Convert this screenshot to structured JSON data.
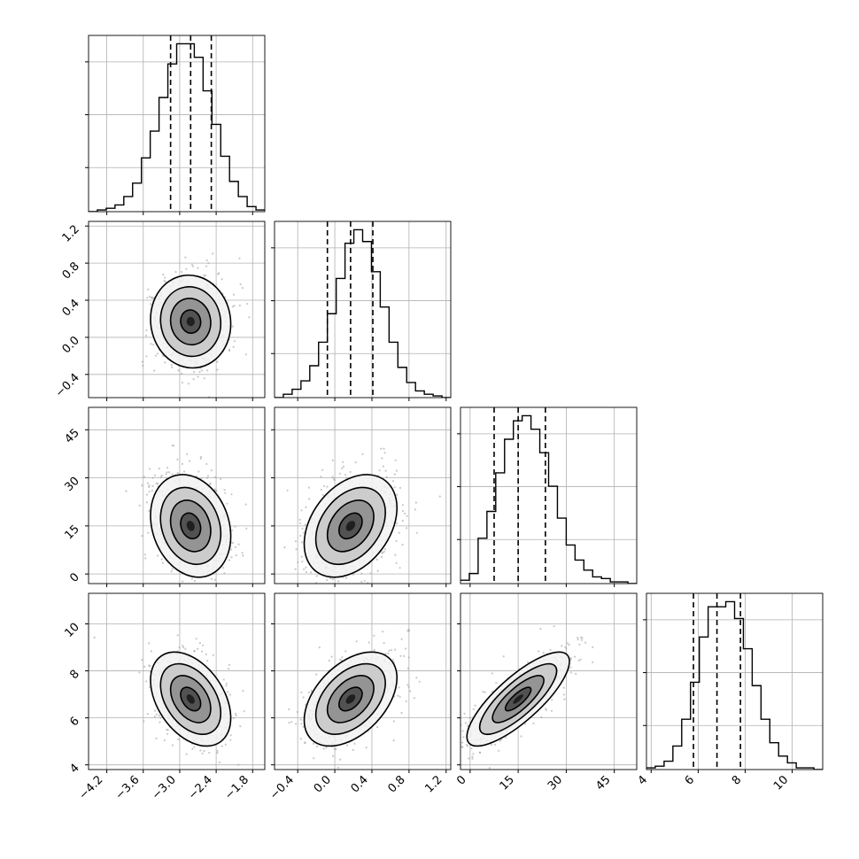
{
  "chart_data": {
    "type": "corner",
    "description_source": "corner plot of 4 parameters: 1D histograms on diagonal, 2D density with contours off-diagonal",
    "grid": true,
    "colors": {
      "line": "#000000",
      "grid": "#b0b0b0",
      "scatter": "#9a9a9a",
      "background": "#ffffff"
    },
    "parameters": [
      {
        "range": [
          -4.5,
          -1.6
        ],
        "ticks": [
          -4.2,
          -3.6,
          -3.0,
          -2.4,
          -1.8
        ],
        "tick_labels": [
          "−4.2",
          "−3.6",
          "−3.0",
          "−2.4",
          "−1.8"
        ],
        "quantiles": [
          -3.15,
          -2.82,
          -2.48
        ],
        "mean": -2.82,
        "sd": 0.33
      },
      {
        "range": [
          -0.65,
          1.25
        ],
        "ticks": [
          -0.4,
          0.0,
          0.4,
          0.8,
          1.2
        ],
        "tick_labels": [
          "−0.4",
          "0.0",
          "0.4",
          "0.8",
          "1.2"
        ],
        "quantiles": [
          -0.08,
          0.17,
          0.41
        ],
        "mean": 0.17,
        "sd": 0.25
      },
      {
        "range": [
          -3,
          52
        ],
        "ticks": [
          0,
          15,
          30,
          45
        ],
        "tick_labels": [
          "0",
          "15",
          "30",
          "45"
        ],
        "quantiles": [
          7.5,
          15.0,
          23.5
        ],
        "mean": 15.0,
        "sd": 8.0
      },
      {
        "range": [
          3.8,
          11.3
        ],
        "ticks": [
          4,
          6,
          8,
          10
        ],
        "tick_labels": [
          "4",
          "6",
          "8",
          "10"
        ],
        "quantiles": [
          5.8,
          6.8,
          7.8
        ],
        "mean": 6.8,
        "sd": 1.0
      }
    ],
    "histograms": [
      {
        "param": 0,
        "bin_edges": [
          -4.5,
          -4.355,
          -4.21,
          -4.065,
          -3.92,
          -3.775,
          -3.63,
          -3.485,
          -3.34,
          -3.195,
          -3.05,
          -2.905,
          -2.76,
          -2.615,
          -2.47,
          -2.325,
          -2.18,
          -2.035,
          -1.89,
          -1.745,
          -1.6
        ],
        "counts": [
          0.0,
          0.01,
          0.02,
          0.04,
          0.09,
          0.17,
          0.32,
          0.48,
          0.68,
          0.88,
          1.0,
          1.0,
          0.92,
          0.72,
          0.52,
          0.33,
          0.18,
          0.09,
          0.03,
          0.01
        ]
      },
      {
        "param": 1,
        "bin_edges": [
          -0.65,
          -0.555,
          -0.46,
          -0.365,
          -0.27,
          -0.175,
          -0.08,
          0.015,
          0.11,
          0.205,
          0.3,
          0.395,
          0.49,
          0.585,
          0.68,
          0.775,
          0.87,
          0.965,
          1.06,
          1.155,
          1.25
        ],
        "counts": [
          0.0,
          0.02,
          0.05,
          0.1,
          0.19,
          0.33,
          0.5,
          0.71,
          0.92,
          1.0,
          0.93,
          0.75,
          0.54,
          0.33,
          0.18,
          0.09,
          0.04,
          0.02,
          0.01,
          0.0
        ]
      },
      {
        "param": 2,
        "bin_edges": [
          -3,
          -0.25,
          2.5,
          5.25,
          8,
          10.75,
          13.5,
          16.25,
          19,
          21.75,
          24.5,
          27.25,
          30,
          32.75,
          35.5,
          38.25,
          41,
          43.75,
          46.5,
          49.25,
          52
        ],
        "counts": [
          0.02,
          0.06,
          0.27,
          0.43,
          0.66,
          0.86,
          0.97,
          1.0,
          0.92,
          0.78,
          0.58,
          0.39,
          0.23,
          0.14,
          0.08,
          0.04,
          0.03,
          0.01,
          0.01,
          0.0
        ]
      },
      {
        "param": 3,
        "bin_edges": [
          3.8,
          4.175,
          4.55,
          4.925,
          5.3,
          5.675,
          6.05,
          6.425,
          6.8,
          7.175,
          7.55,
          7.925,
          8.3,
          8.675,
          9.05,
          9.425,
          9.8,
          10.175,
          10.55,
          10.925,
          11.3
        ],
        "counts": [
          0.01,
          0.02,
          0.05,
          0.14,
          0.3,
          0.52,
          0.79,
          0.97,
          0.97,
          1.0,
          0.9,
          0.72,
          0.5,
          0.3,
          0.16,
          0.08,
          0.04,
          0.01,
          0.01,
          0.0
        ]
      }
    ],
    "correlations": [
      {
        "row": 1,
        "col": 0,
        "rho": -0.05
      },
      {
        "row": 2,
        "col": 0,
        "rho": -0.2
      },
      {
        "row": 2,
        "col": 1,
        "rho": 0.35
      },
      {
        "row": 3,
        "col": 0,
        "rho": -0.4
      },
      {
        "row": 3,
        "col": 1,
        "rho": 0.45
      },
      {
        "row": 3,
        "col": 2,
        "rho": 0.8
      }
    ]
  }
}
